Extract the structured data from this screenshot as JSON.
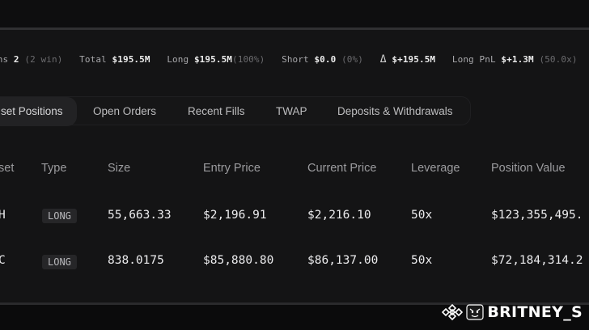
{
  "summary": {
    "positions_label": "ens",
    "positions_value": "2",
    "positions_sub": "(2 win)",
    "total_label": "Total",
    "total_value": "$195.5M",
    "long_label": "Long",
    "long_value": "$195.5M",
    "long_sub": "(100%)",
    "short_label": "Short",
    "short_value": "$0.0",
    "short_sub": "(0%)",
    "delta_icon": "delta-icon",
    "delta_value": "$+195.5M",
    "long_pnl_label": "Long PnL",
    "long_pnl_value": "$+1.3M",
    "long_pnl_sub": "(50.0x)"
  },
  "tabs": [
    {
      "label": "set Positions",
      "active": true
    },
    {
      "label": "Open Orders",
      "active": false
    },
    {
      "label": "Recent Fills",
      "active": false
    },
    {
      "label": "TWAP",
      "active": false
    },
    {
      "label": "Deposits & Withdrawals",
      "active": false
    }
  ],
  "table": {
    "columns": [
      "set",
      "Type",
      "Size",
      "Entry Price",
      "Current Price",
      "Leverage",
      "Position Value"
    ],
    "rows": [
      {
        "asset": "H",
        "type": "LONG",
        "size": "55,663.33",
        "entry": "$2,196.91",
        "current": "$2,216.10",
        "leverage": "50x",
        "value": "$123,355,495."
      },
      {
        "asset": "C",
        "type": "LONG",
        "size": "838.0175",
        "entry": "$85,880.80",
        "current": "$86,137.00",
        "leverage": "50x",
        "value": "$72,184,314.2"
      }
    ]
  },
  "watermark": {
    "text": "BRITNEY_S",
    "icon": "binance-logo-icon"
  },
  "colors": {
    "background": "#0c0c0d",
    "panel": "#141415",
    "badge_bg": "#262628",
    "text_primary": "#ececee",
    "text_muted": "#9b9b9e"
  }
}
